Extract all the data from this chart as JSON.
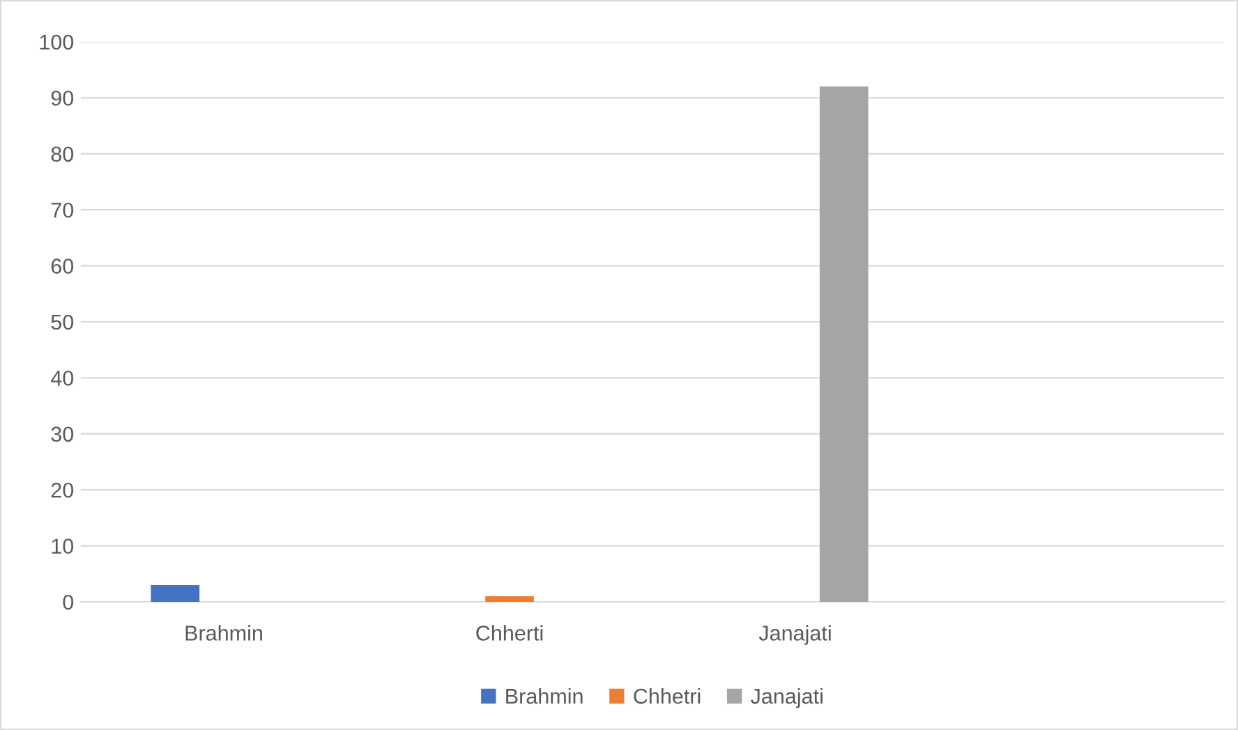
{
  "chart_data": {
    "type": "bar",
    "categories": [
      "Brahmin",
      "Chherti",
      "Janajati",
      null
    ],
    "series": [
      {
        "name": "Brahmin",
        "color": "#4472c4",
        "values": [
          3,
          null,
          null,
          null
        ]
      },
      {
        "name": "Chhetri",
        "color": "#ed7d31",
        "values": [
          null,
          1,
          null,
          null
        ]
      },
      {
        "name": "Janajati",
        "color": "#a5a5a5",
        "values": [
          null,
          null,
          92,
          null
        ]
      }
    ],
    "ylim": [
      0,
      100
    ],
    "yticks": [
      0,
      10,
      20,
      30,
      40,
      50,
      60,
      70,
      80,
      90,
      100
    ],
    "grid": "y",
    "legend": "bottom"
  }
}
